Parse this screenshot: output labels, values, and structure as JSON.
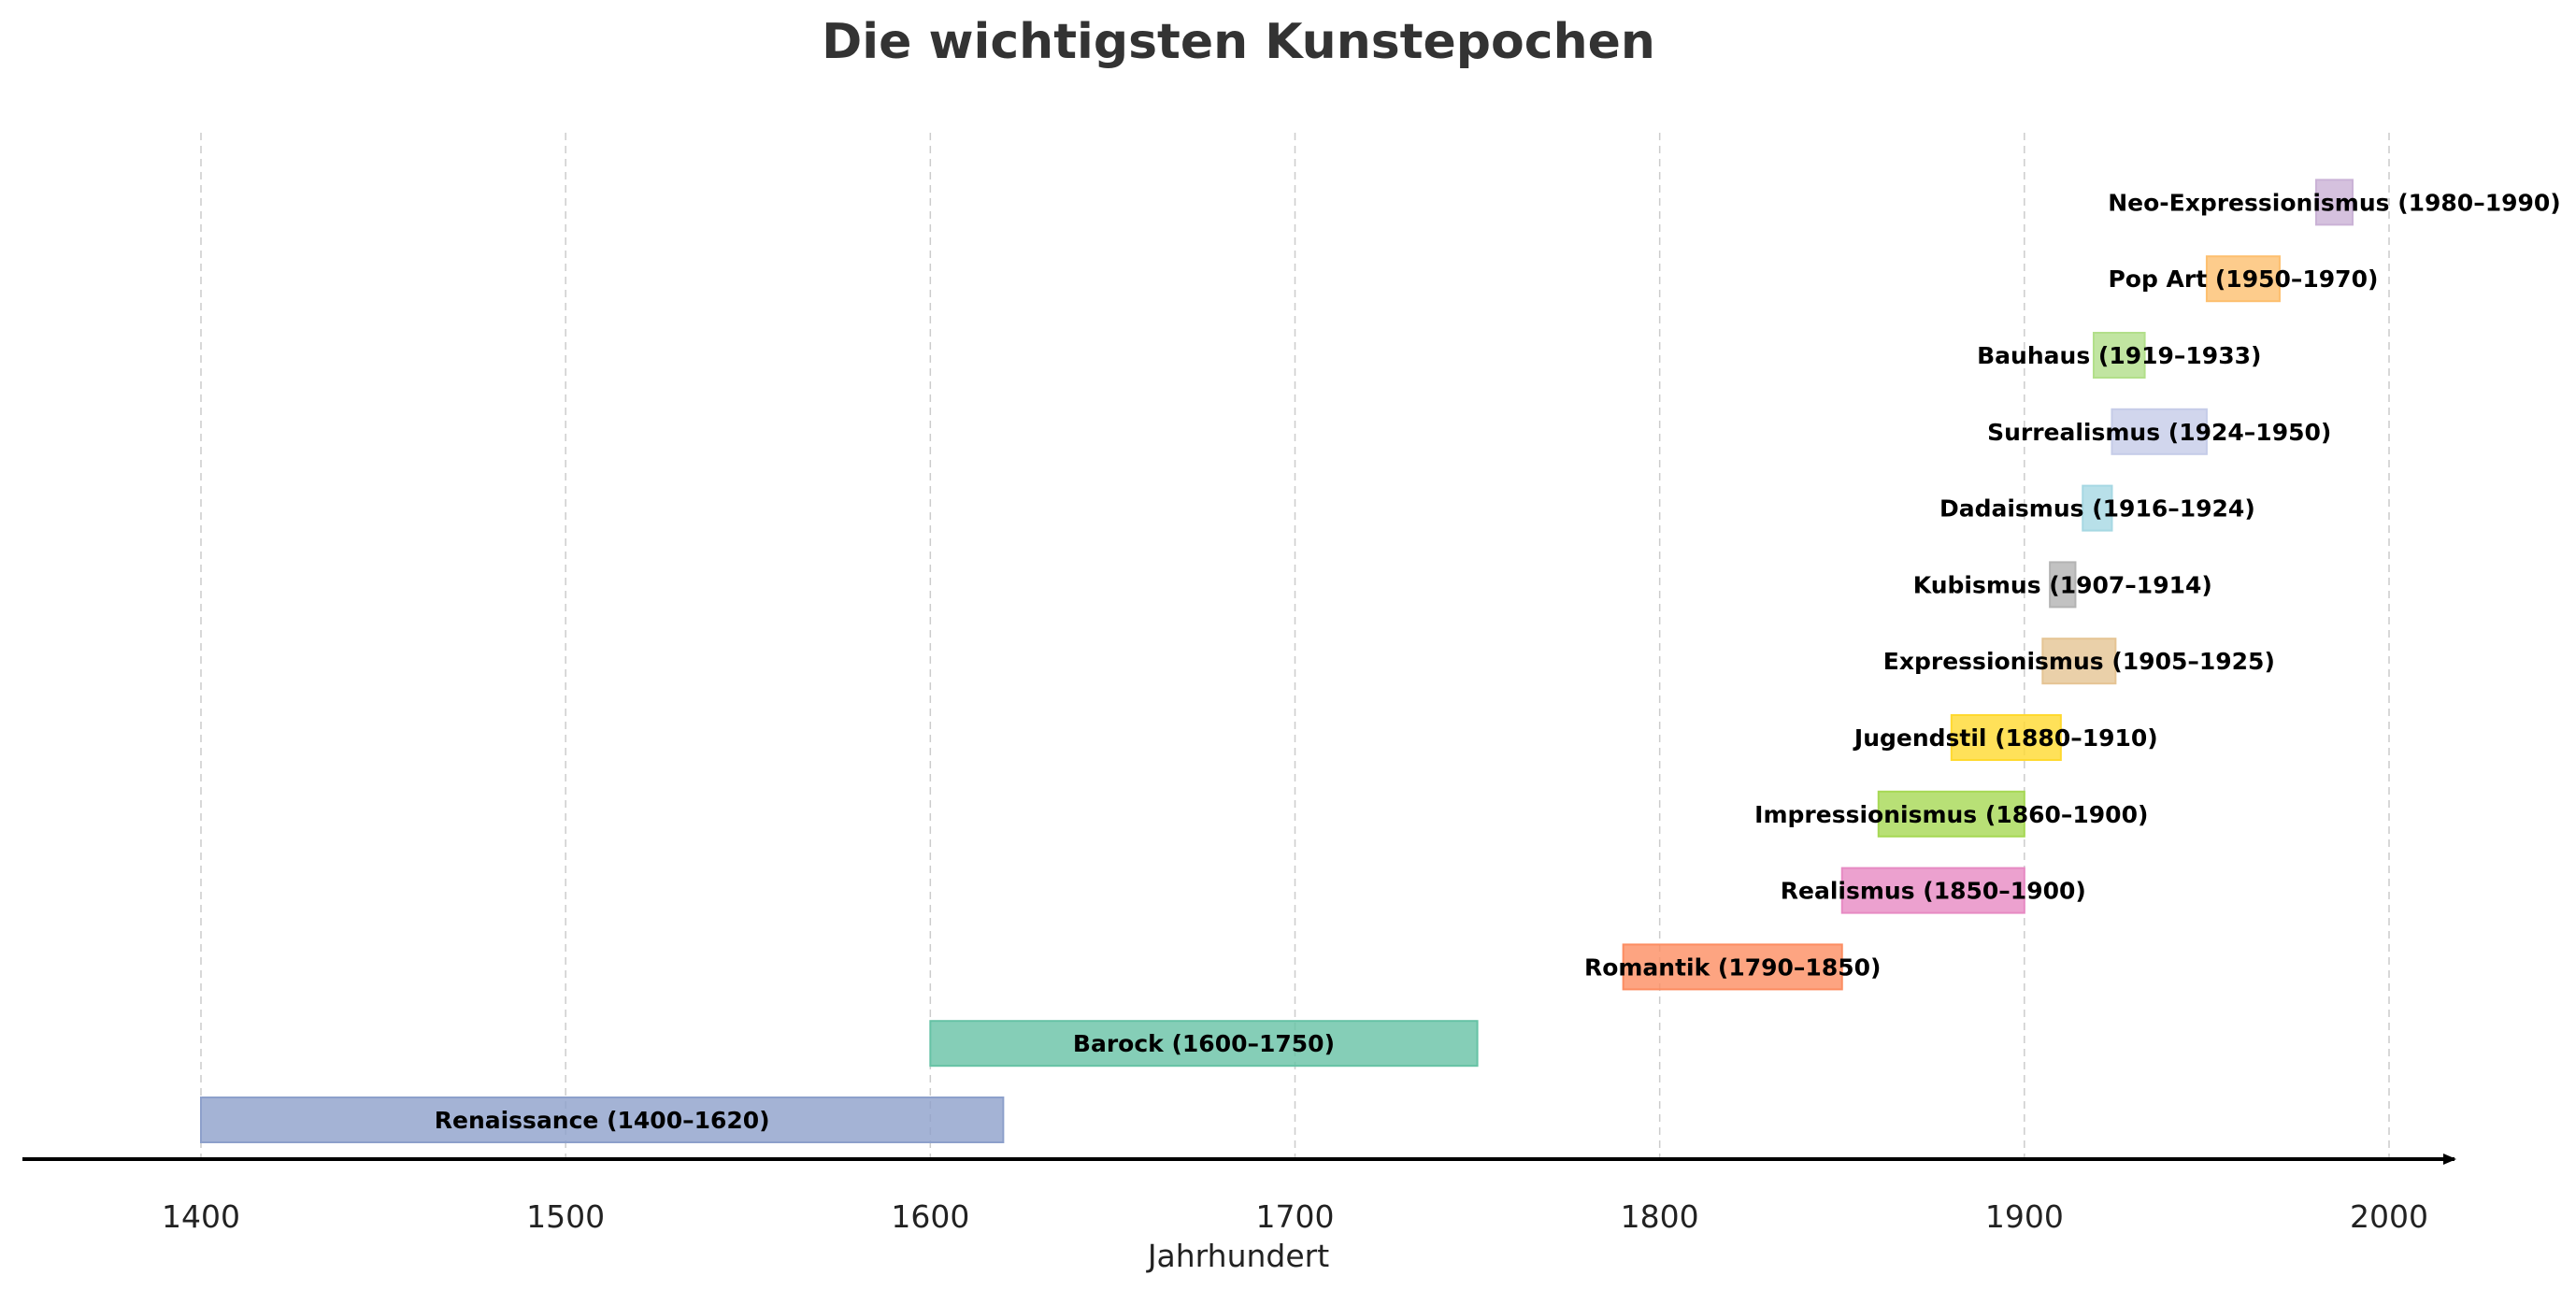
{
  "chart_data": {
    "type": "bar",
    "orientation": "horizontal-timeline",
    "title": "Die wichtigsten Kunstepochen",
    "xlabel": "Jahrhundert",
    "ylabel": "",
    "xlim": [
      1350,
      2018
    ],
    "xticks": [
      1400,
      1500,
      1600,
      1700,
      1800,
      1900,
      2000
    ],
    "grid": true,
    "legend": "none",
    "periods": [
      {
        "label": "Renaissance (1400–1620)",
        "start": 1400,
        "end": 1620,
        "color": "#8da0cb"
      },
      {
        "label": "Barock (1600–1750)",
        "start": 1600,
        "end": 1750,
        "color": "#66c2a5"
      },
      {
        "label": "Romantik (1790–1850)",
        "start": 1790,
        "end": 1850,
        "color": "#fc8d62"
      },
      {
        "label": "Realismus (1850–1900)",
        "start": 1850,
        "end": 1900,
        "color": "#e78ac3"
      },
      {
        "label": "Impressionismus (1860–1900)",
        "start": 1860,
        "end": 1900,
        "color": "#a6d854"
      },
      {
        "label": "Jugendstil (1880–1910)",
        "start": 1880,
        "end": 1910,
        "color": "#ffd92f"
      },
      {
        "label": "Expressionismus (1905–1925)",
        "start": 1905,
        "end": 1925,
        "color": "#e5c494"
      },
      {
        "label": "Kubismus (1907–1914)",
        "start": 1907,
        "end": 1914,
        "color": "#b3b3b3"
      },
      {
        "label": "Dadaismus (1916–1924)",
        "start": 1916,
        "end": 1924,
        "color": "#a6d8e3"
      },
      {
        "label": "Surrealismus (1924–1950)",
        "start": 1924,
        "end": 1950,
        "color": "#c5cce8"
      },
      {
        "label": "Bauhaus (1919–1933)",
        "start": 1919,
        "end": 1933,
        "color": "#b2df8a"
      },
      {
        "label": "Pop Art (1950–1970)",
        "start": 1950,
        "end": 1970,
        "color": "#fdbf6f"
      },
      {
        "label": "Neo-Expressionismus (1980–1990)",
        "start": 1980,
        "end": 1990,
        "color": "#cab2d6"
      }
    ]
  }
}
